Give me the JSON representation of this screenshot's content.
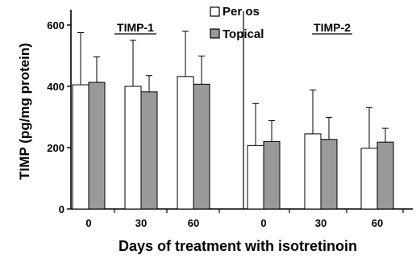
{
  "chart_data": {
    "type": "bar",
    "title": "",
    "ylabel": "TIMP (pg/mg protein)",
    "xlabel": "Days of treatment with isotretinoin",
    "ylim": [
      0,
      650
    ],
    "yticks": [
      0,
      200,
      400,
      600
    ],
    "legend_placement": "top-center",
    "grid": false,
    "error_bars": "upper only",
    "panels": [
      {
        "label": "TIMP-1",
        "categories": [
          "0",
          "30",
          "60"
        ]
      },
      {
        "label": "TIMP-2",
        "categories": [
          "0",
          "30",
          "60"
        ]
      }
    ],
    "series": [
      {
        "name": "Per os",
        "color": "#ffffff",
        "values": [
          405,
          400,
          432,
          207,
          245,
          198
        ],
        "errors": [
          170,
          150,
          148,
          137,
          143,
          133
        ]
      },
      {
        "name": "Topical",
        "color": "#999999",
        "values": [
          413,
          382,
          407,
          220,
          227,
          218
        ],
        "errors": [
          83,
          53,
          92,
          68,
          72,
          45
        ]
      }
    ]
  }
}
